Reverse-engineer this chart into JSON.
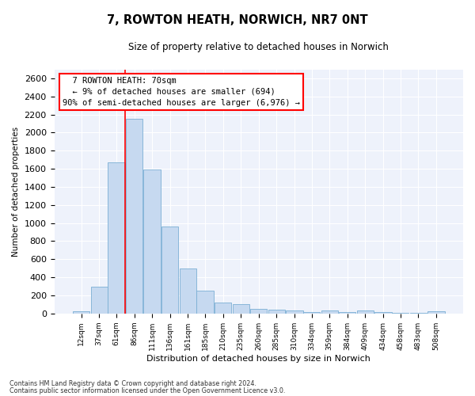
{
  "title": "7, ROWTON HEATH, NORWICH, NR7 0NT",
  "subtitle": "Size of property relative to detached houses in Norwich",
  "xlabel": "Distribution of detached houses by size in Norwich",
  "ylabel": "Number of detached properties",
  "footnote1": "Contains HM Land Registry data © Crown copyright and database right 2024.",
  "footnote2": "Contains public sector information licensed under the Open Government Licence v3.0.",
  "annotation_title": "7 ROWTON HEATH: 70sqm",
  "annotation_line1": "← 9% of detached houses are smaller (694)",
  "annotation_line2": "90% of semi-detached houses are larger (6,976) →",
  "bar_color": "#c6d9f0",
  "bar_edge_color": "#7bafd4",
  "vline_color": "red",
  "vline_x": 73.5,
  "categories": [
    12,
    37,
    61,
    86,
    111,
    136,
    161,
    185,
    210,
    235,
    260,
    285,
    310,
    334,
    359,
    384,
    409,
    434,
    458,
    483,
    508
  ],
  "cat_labels": [
    "12sqm",
    "37sqm",
    "61sqm",
    "86sqm",
    "111sqm",
    "136sqm",
    "161sqm",
    "185sqm",
    "210sqm",
    "235sqm",
    "260sqm",
    "285sqm",
    "310sqm",
    "334sqm",
    "359sqm",
    "384sqm",
    "409sqm",
    "434sqm",
    "458sqm",
    "483sqm",
    "508sqm"
  ],
  "values": [
    25,
    300,
    1670,
    2150,
    1590,
    960,
    500,
    250,
    120,
    100,
    50,
    45,
    30,
    20,
    30,
    20,
    30,
    20,
    5,
    5,
    25
  ],
  "ylim": [
    0,
    2700
  ],
  "yticks": [
    0,
    200,
    400,
    600,
    800,
    1000,
    1200,
    1400,
    1600,
    1800,
    2000,
    2200,
    2400,
    2600
  ],
  "bin_width": 25,
  "background_color": "#eef2fb",
  "grid_color": "#ffffff"
}
